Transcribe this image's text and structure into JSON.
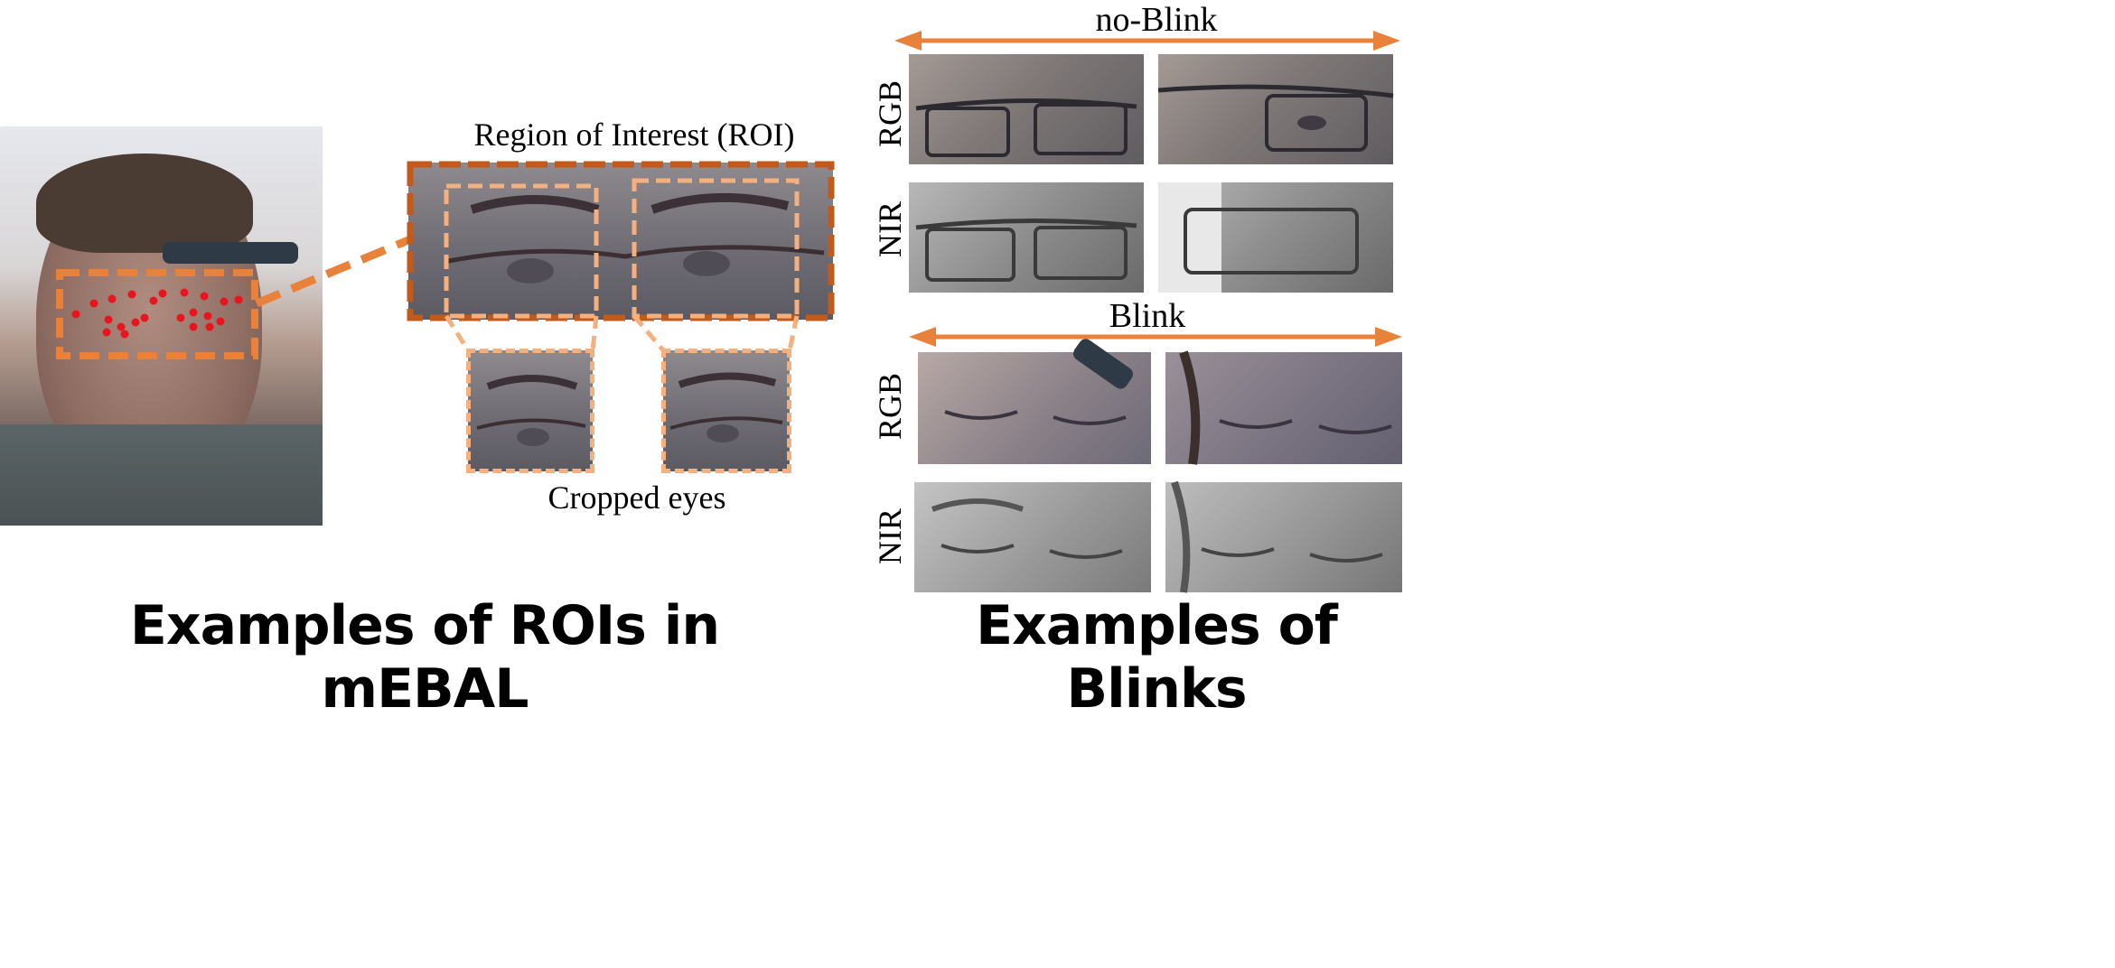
{
  "left_figure": {
    "caption": "Examples of ROIs in mEBAL",
    "roi_label": "Region of Interest (ROI)",
    "cropped_label": "Cropped eyes"
  },
  "right_figure": {
    "caption": "Examples of Blinks",
    "no_blink_label": "no-Blink",
    "blink_label": "Blink",
    "row_labels": {
      "rgb": "RGB",
      "nir": "NIR"
    }
  },
  "colors": {
    "orange": "#e8823a",
    "dark_orange": "#c25a1c",
    "light_orange": "#f4b07e",
    "landmark_red": "#e8141e"
  }
}
